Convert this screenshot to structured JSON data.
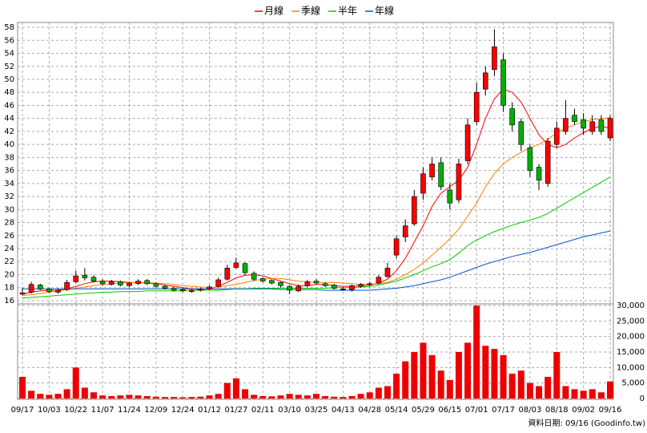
{
  "chart_data": {
    "type": "candlestick",
    "categories": [
      "09/17",
      null,
      null,
      "10/03",
      null,
      null,
      "10/22",
      null,
      null,
      "11/07",
      null,
      null,
      "11/24",
      null,
      null,
      "12/09",
      null,
      null,
      "12/24",
      null,
      null,
      "01/12",
      null,
      null,
      "01/27",
      null,
      null,
      "02/11",
      null,
      null,
      "03/10",
      null,
      null,
      "03/25",
      null,
      null,
      "04/13",
      null,
      null,
      "04/28",
      null,
      null,
      "05/14",
      null,
      null,
      "05/29",
      null,
      null,
      "06/15",
      null,
      null,
      "07/01",
      null,
      null,
      "07/17",
      null,
      null,
      "08/03",
      null,
      null,
      "08/18",
      null,
      null,
      "09/02",
      null,
      null,
      "09/16"
    ],
    "open": [
      17.0,
      17.3,
      18.4,
      17.8,
      17.3,
      17.7,
      18.9,
      19.9,
      19.6,
      19.0,
      18.5,
      18.9,
      18.3,
      18.6,
      19.1,
      18.6,
      18.2,
      17.9,
      17.7,
      17.4,
      17.6,
      17.8,
      18.2,
      19.3,
      21.1,
      21.7,
      20.2,
      19.4,
      19.1,
      18.8,
      18.2,
      17.5,
      18.3,
      19.0,
      18.6,
      18.4,
      17.8,
      17.7,
      18.2,
      18.5,
      18.7,
      19.7,
      23.0,
      25.8,
      27.8,
      32.5,
      35.0,
      37.2,
      33.0,
      31.5,
      37.5,
      43.5,
      48.5,
      51.5,
      53.0,
      45.5,
      43.5,
      39.5,
      36.5,
      34.0,
      40.0,
      42.0,
      44.5,
      43.8,
      42.0,
      43.8,
      41.0
    ],
    "high": [
      18.0,
      18.9,
      18.6,
      18.0,
      17.9,
      19.2,
      20.6,
      21.0,
      19.9,
      19.3,
      19.2,
      19.1,
      18.9,
      19.3,
      19.3,
      18.8,
      18.4,
      18.1,
      17.9,
      17.8,
      18.0,
      18.4,
      19.5,
      21.5,
      22.6,
      21.9,
      20.5,
      19.6,
      19.3,
      18.9,
      18.4,
      18.5,
      19.2,
      19.3,
      18.8,
      18.6,
      18.1,
      18.5,
      18.7,
      18.9,
      19.9,
      21.8,
      26.0,
      28.5,
      33.0,
      36.5,
      38.0,
      38.0,
      34.0,
      37.8,
      44.0,
      49.5,
      52.0,
      57.7,
      54.0,
      46.5,
      44.0,
      40.0,
      37.0,
      41.0,
      43.5,
      46.8,
      45.5,
      44.8,
      44.5,
      44.5,
      44.5
    ],
    "low": [
      16.8,
      17.1,
      17.6,
      17.2,
      17.1,
      17.5,
      18.7,
      19.1,
      18.8,
      18.3,
      18.3,
      18.2,
      18.1,
      18.4,
      18.4,
      18.0,
      17.7,
      17.4,
      17.3,
      17.2,
      17.4,
      17.6,
      18.0,
      19.1,
      20.9,
      20.0,
      19.0,
      18.8,
      18.5,
      18.0,
      17.0,
      17.3,
      18.1,
      18.5,
      18.1,
      17.7,
      17.5,
      17.4,
      18.0,
      18.2,
      18.5,
      19.5,
      22.5,
      25.0,
      27.5,
      31.5,
      34.5,
      33.0,
      30.0,
      31.0,
      37.0,
      43.0,
      47.5,
      50.5,
      45.0,
      42.0,
      39.0,
      35.0,
      33.0,
      33.5,
      39.5,
      41.5,
      43.0,
      41.5,
      41.5,
      41.5,
      40.5
    ],
    "close": [
      17.2,
      18.5,
      17.8,
      17.4,
      17.6,
      18.8,
      19.8,
      19.5,
      19.0,
      18.6,
      18.9,
      18.4,
      18.7,
      19.0,
      18.6,
      18.2,
      17.9,
      17.6,
      17.5,
      17.6,
      17.8,
      18.1,
      19.2,
      21.0,
      21.8,
      20.3,
      19.3,
      19.0,
      18.7,
      18.3,
      17.6,
      18.2,
      18.9,
      18.7,
      18.3,
      17.9,
      17.8,
      18.3,
      18.5,
      18.6,
      19.6,
      21.0,
      25.5,
      27.5,
      32.0,
      35.5,
      37.0,
      33.5,
      31.0,
      37.0,
      43.0,
      48.0,
      51.0,
      55.0,
      46.0,
      43.0,
      40.0,
      36.0,
      34.5,
      40.5,
      42.5,
      44.0,
      43.5,
      42.5,
      43.5,
      42.0,
      44.0
    ],
    "up_color": "#ff0000",
    "down_color": "#00b000",
    "ylim": [
      15.5,
      58.5
    ],
    "yticks": [
      16,
      18,
      20,
      22,
      24,
      26,
      28,
      30,
      32,
      34,
      36,
      38,
      40,
      42,
      44,
      46,
      48,
      50,
      52,
      54,
      56,
      58
    ],
    "grid": true,
    "series": [
      {
        "name": "月線",
        "color": "#ff0000",
        "values": [
          17.0,
          17.3,
          17.5,
          17.6,
          17.6,
          17.8,
          18.2,
          18.6,
          18.9,
          19.0,
          19.0,
          18.9,
          18.8,
          18.8,
          18.7,
          18.6,
          18.4,
          18.2,
          18.0,
          17.8,
          17.7,
          17.8,
          18.2,
          18.8,
          19.5,
          19.9,
          20.0,
          19.8,
          19.4,
          19.0,
          18.6,
          18.3,
          18.3,
          18.5,
          18.5,
          18.3,
          18.2,
          18.2,
          18.3,
          18.4,
          18.7,
          19.3,
          20.6,
          22.5,
          25.0,
          27.5,
          30.5,
          32.5,
          33.5,
          34.5,
          36.5,
          40.0,
          44.0,
          47.0,
          48.5,
          48.0,
          46.5,
          44.0,
          41.5,
          40.0,
          39.5,
          40.0,
          41.0,
          41.8,
          42.5,
          42.8,
          42.5
        ]
      },
      {
        "name": "季線",
        "color": "#ff8000",
        "values": [
          16.8,
          16.9,
          17.1,
          17.3,
          17.5,
          17.7,
          17.9,
          18.1,
          18.3,
          18.5,
          18.6,
          18.7,
          18.8,
          18.8,
          18.8,
          18.7,
          18.6,
          18.5,
          18.3,
          18.2,
          18.1,
          18.0,
          18.1,
          18.3,
          18.5,
          18.8,
          19.1,
          19.3,
          19.4,
          19.4,
          19.2,
          19.0,
          18.9,
          18.8,
          18.8,
          18.8,
          18.7,
          18.6,
          18.5,
          18.5,
          18.6,
          18.8,
          19.3,
          20.0,
          20.8,
          21.8,
          23.0,
          24.2,
          25.5,
          27.0,
          29.0,
          31.0,
          33.5,
          35.5,
          37.0,
          38.0,
          38.8,
          39.5,
          40.0,
          40.8,
          41.8,
          42.5,
          43.0,
          43.5,
          43.8,
          44.0,
          44.1
        ]
      },
      {
        "name": "半年",
        "color": "#00cc00",
        "values": [
          16.4,
          16.5,
          16.6,
          16.7,
          16.8,
          16.9,
          17.0,
          17.1,
          17.2,
          17.3,
          17.3,
          17.4,
          17.4,
          17.4,
          17.5,
          17.5,
          17.5,
          17.5,
          17.5,
          17.6,
          17.6,
          17.6,
          17.6,
          17.7,
          17.8,
          17.8,
          17.9,
          17.9,
          17.9,
          17.9,
          17.9,
          17.9,
          17.9,
          17.9,
          17.9,
          18.0,
          18.0,
          18.0,
          18.1,
          18.2,
          18.4,
          18.7,
          19.0,
          19.5,
          20.0,
          20.6,
          21.2,
          21.7,
          22.3,
          23.3,
          24.5,
          25.3,
          26.0,
          26.6,
          27.1,
          27.6,
          28.0,
          28.4,
          28.8,
          29.4,
          30.2,
          31.0,
          31.8,
          32.6,
          33.4,
          34.2,
          35.0
        ]
      },
      {
        "name": "年線",
        "color": "#0055cc",
        "values": [
          17.8,
          17.8,
          17.8,
          17.8,
          17.8,
          17.8,
          17.8,
          17.8,
          17.8,
          17.8,
          17.8,
          17.8,
          17.8,
          17.8,
          17.8,
          17.8,
          17.8,
          17.8,
          17.8,
          17.8,
          17.8,
          17.8,
          17.8,
          17.8,
          17.8,
          17.8,
          17.8,
          17.8,
          17.8,
          17.7,
          17.7,
          17.7,
          17.7,
          17.7,
          17.6,
          17.6,
          17.6,
          17.6,
          17.6,
          17.6,
          17.7,
          17.8,
          17.9,
          18.1,
          18.3,
          18.6,
          18.9,
          19.2,
          19.6,
          20.1,
          20.6,
          21.1,
          21.6,
          22.0,
          22.4,
          22.8,
          23.1,
          23.4,
          23.8,
          24.2,
          24.6,
          25.0,
          25.4,
          25.8,
          26.1,
          26.4,
          26.7
        ]
      }
    ],
    "volume": {
      "color": "#ee0000",
      "values": [
        7000,
        2500,
        1500,
        1200,
        1500,
        3000,
        10000,
        3500,
        2000,
        1000,
        800,
        1000,
        1200,
        1000,
        800,
        600,
        500,
        500,
        400,
        500,
        600,
        1000,
        1500,
        5000,
        6500,
        3000,
        1200,
        800,
        700,
        1000,
        1500,
        1200,
        1000,
        1500,
        800,
        600,
        500,
        800,
        1500,
        2000,
        3500,
        4000,
        8000,
        12000,
        15000,
        18000,
        14000,
        9000,
        6000,
        15000,
        18000,
        30000,
        17000,
        16000,
        14000,
        8000,
        9000,
        5000,
        4000,
        7000,
        15000,
        4000,
        3000,
        2500,
        3000,
        2000,
        5500
      ],
      "ylim": [
        0,
        30000
      ],
      "yticks": [
        0,
        {
          "value": 5000,
          "label": "5,000"
        },
        {
          "value": 10000,
          "label": "10,000"
        },
        {
          "value": 15000,
          "label": "15,000"
        },
        {
          "value": 20000,
          "label": "20,000"
        },
        {
          "value": 25000,
          "label": "25,000"
        },
        {
          "value": 30000,
          "label": "30,000"
        }
      ]
    },
    "source_note": "資料日期: 09/16 (Goodinfo.tw)"
  }
}
